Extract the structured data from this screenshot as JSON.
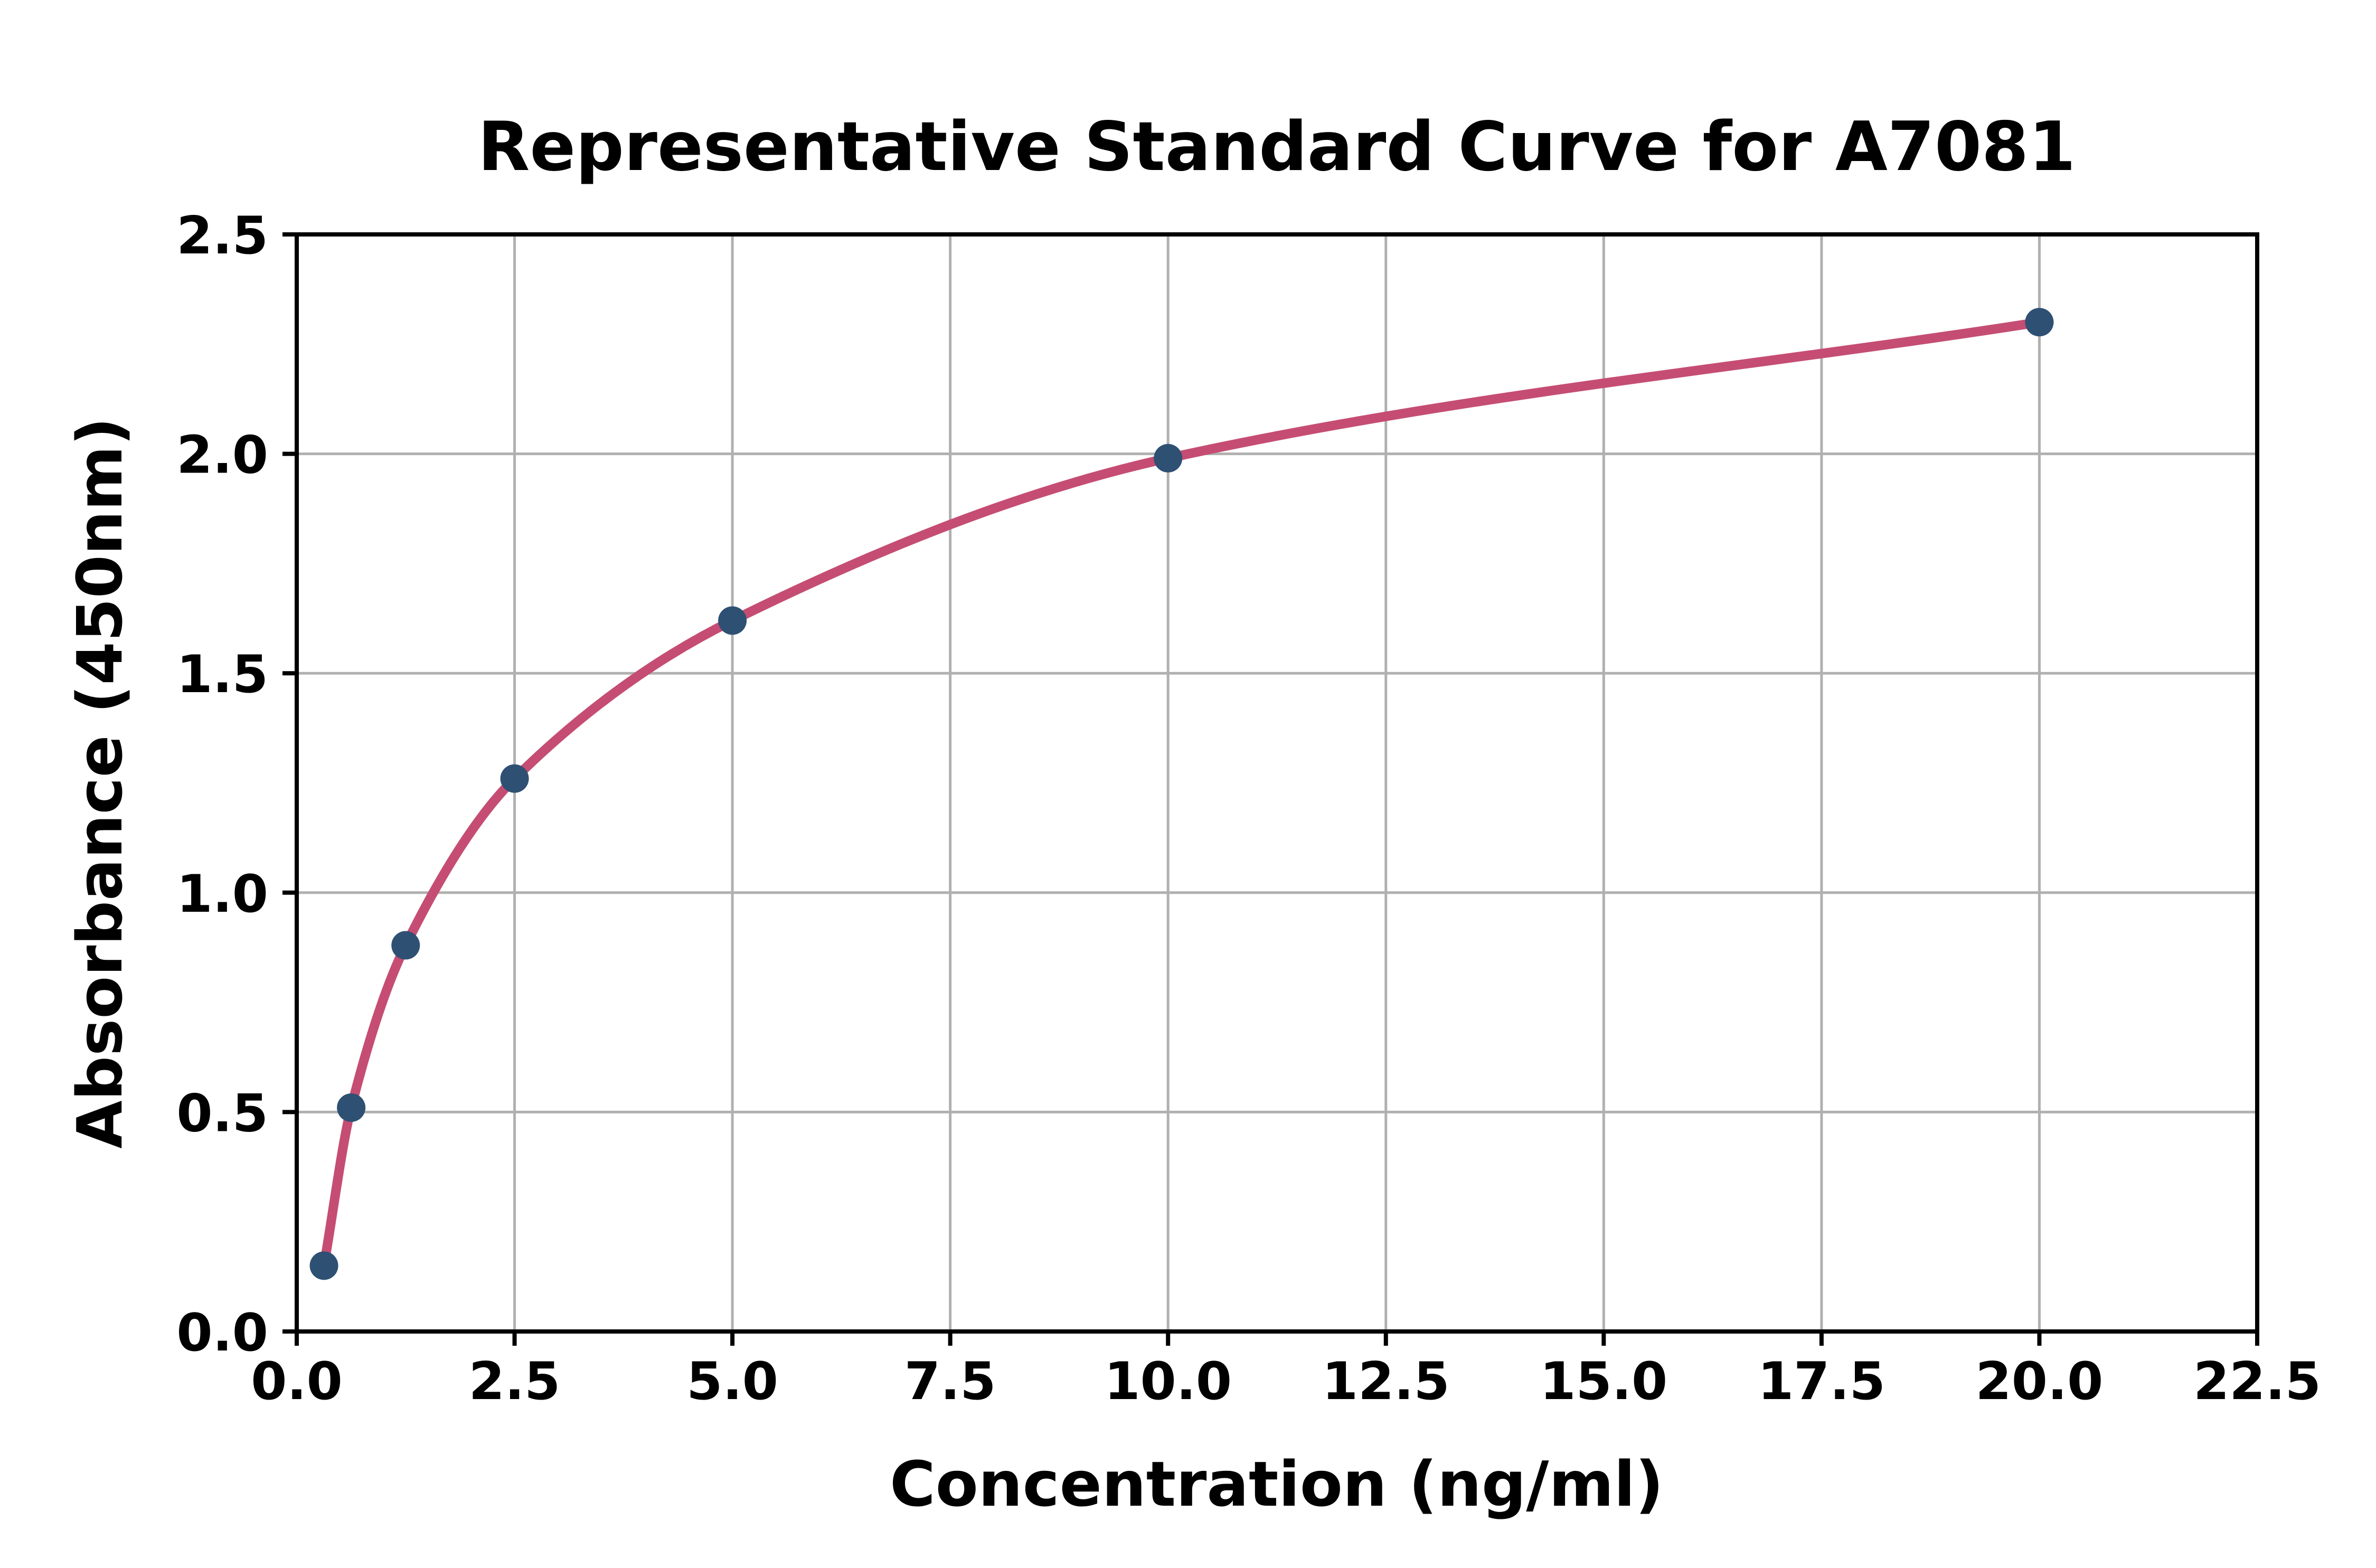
{
  "page": {
    "background": "#ffffff"
  },
  "chart_data": {
    "type": "line",
    "title": "Representative Standard Curve for A7081",
    "xlabel": "Concentration (ng/ml)",
    "ylabel": "Absorbance (450nm)",
    "x": [
      0.3125,
      0.625,
      1.25,
      2.5,
      5,
      10,
      20
    ],
    "y": [
      0.15,
      0.51,
      0.88,
      1.26,
      1.62,
      1.99,
      2.3
    ],
    "xlim": [
      0,
      22.5
    ],
    "ylim": [
      0,
      2.5
    ],
    "xtick_values": [
      0,
      2.5,
      5,
      7.5,
      10,
      12.5,
      15,
      17.5,
      20,
      22.5
    ],
    "xtick_labels": [
      "0.0",
      "2.5",
      "5.0",
      "7.5",
      "10.0",
      "12.5",
      "15.0",
      "17.5",
      "20.0",
      "22.5"
    ],
    "ytick_values": [
      0,
      0.5,
      1,
      1.5,
      2,
      2.5
    ],
    "ytick_labels": [
      "0.0",
      "0.5",
      "1.0",
      "1.5",
      "2.0",
      "2.5"
    ],
    "grid": true,
    "legend": "none",
    "marker_shape": "circle",
    "colors": {
      "line": "#c54d73",
      "marker": "#2e5073",
      "grid": "#b0b0b0",
      "axis": "#000000",
      "text": "#000000",
      "background": "#ffffff"
    }
  }
}
